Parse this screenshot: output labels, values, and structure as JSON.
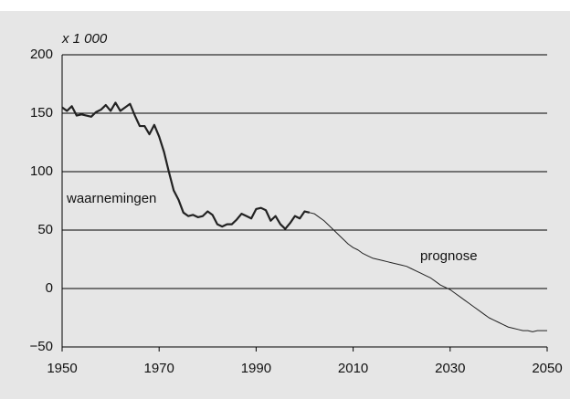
{
  "chart_data": {
    "type": "line",
    "y_unit_label": "x 1 000",
    "xlim": [
      1950,
      2050
    ],
    "xticks": [
      1950,
      1970,
      1990,
      2010,
      2030,
      2050
    ],
    "ylim": [
      -50,
      200
    ],
    "yticks": [
      {
        "value": -50,
        "label": "−50"
      },
      0,
      50,
      100,
      150,
      200
    ],
    "grid": true,
    "series": [
      {
        "name": "waarnemingen",
        "color": "#222222",
        "line_width": 2.2,
        "x": [
          1950,
          1951,
          1952,
          1953,
          1954,
          1955,
          1956,
          1957,
          1958,
          1959,
          1960,
          1961,
          1962,
          1963,
          1964,
          1965,
          1966,
          1967,
          1968,
          1969,
          1970,
          1971,
          1972,
          1973,
          1974,
          1975,
          1976,
          1977,
          1978,
          1979,
          1980,
          1981,
          1982,
          1983,
          1984,
          1985,
          1986,
          1987,
          1988,
          1989,
          1990,
          1991,
          1992,
          1993,
          1994,
          1995,
          1996,
          1997,
          1998,
          1999,
          2000,
          2001
        ],
        "values": [
          155,
          152,
          156,
          148,
          149,
          148,
          147,
          151,
          153,
          157,
          152,
          159,
          152,
          155,
          158,
          148,
          139,
          139,
          132,
          140,
          130,
          117,
          100,
          84,
          76,
          65,
          62,
          63,
          61,
          62,
          66,
          63,
          55,
          53,
          55,
          55,
          59,
          64,
          62,
          60,
          68,
          69,
          67,
          58,
          62,
          55,
          51,
          56,
          62,
          60,
          66,
          65
        ]
      },
      {
        "name": "prognose",
        "color": "#222222",
        "line_width": 1,
        "x": [
          2001,
          2002,
          2003,
          2004,
          2005,
          2006,
          2007,
          2008,
          2009,
          2010,
          2011,
          2012,
          2013,
          2014,
          2015,
          2016,
          2017,
          2018,
          2019,
          2020,
          2021,
          2022,
          2023,
          2024,
          2025,
          2026,
          2027,
          2028,
          2029,
          2030,
          2031,
          2032,
          2033,
          2034,
          2035,
          2036,
          2037,
          2038,
          2039,
          2040,
          2041,
          2042,
          2043,
          2044,
          2045,
          2046,
          2047,
          2048,
          2049,
          2050
        ],
        "values": [
          65,
          64,
          61,
          58,
          54,
          50,
          46,
          42,
          38,
          35,
          33,
          30,
          28,
          26,
          25,
          24,
          23,
          22,
          21,
          20,
          19,
          17,
          15,
          13,
          11,
          9,
          6,
          3,
          1,
          -1,
          -4,
          -7,
          -10,
          -13,
          -16,
          -19,
          -22,
          -25,
          -27,
          -29,
          -31,
          -33,
          -34,
          -35,
          -36,
          -36,
          -37,
          -36,
          -36,
          -36
        ]
      }
    ]
  }
}
